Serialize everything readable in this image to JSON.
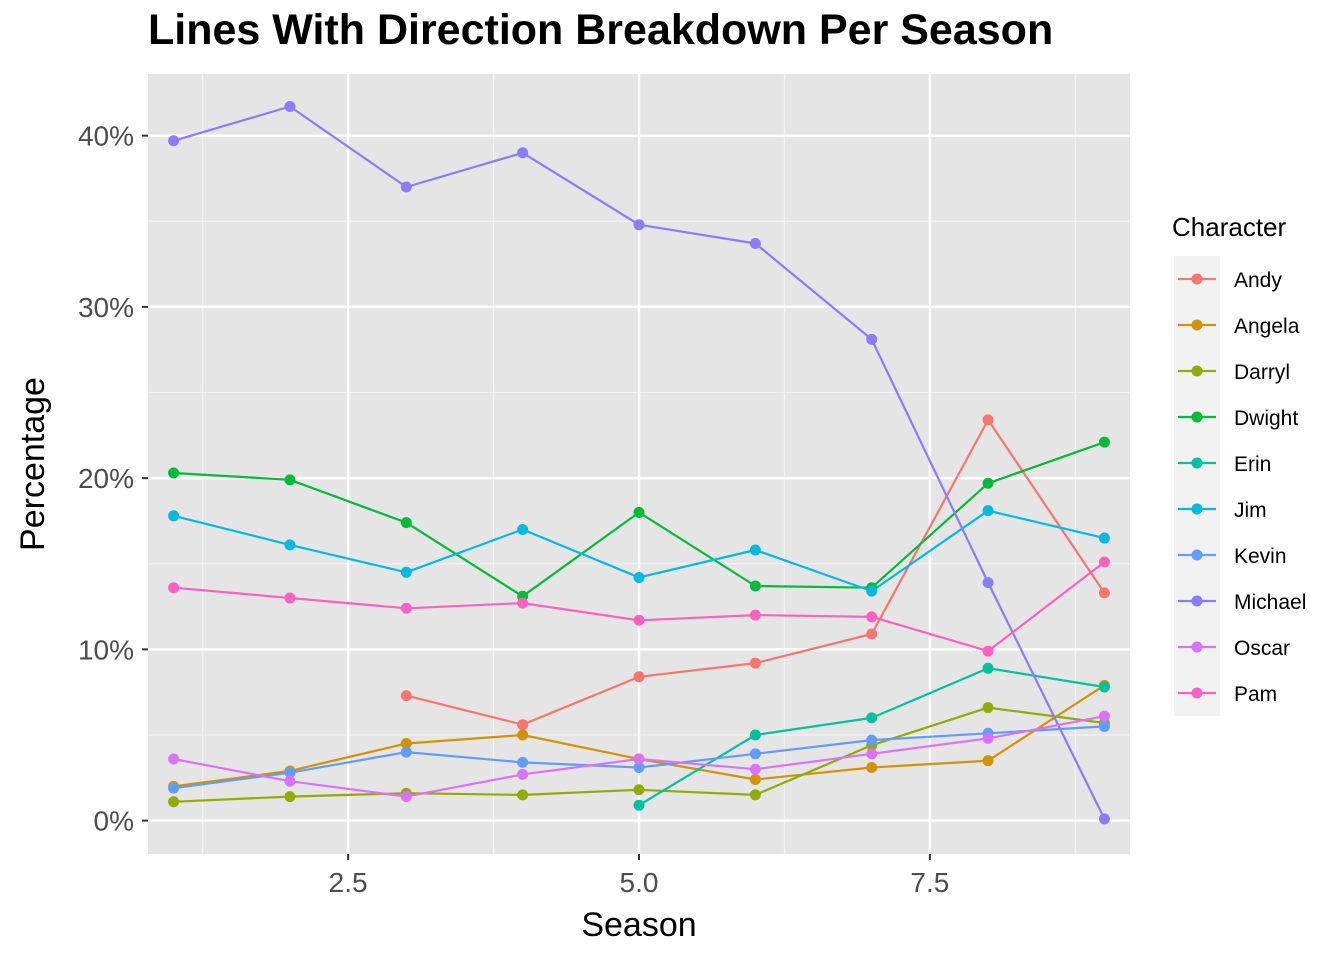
{
  "chart_data": {
    "type": "line",
    "title": "Lines With Direction Breakdown Per Season",
    "xlabel": "Season",
    "ylabel": "Percentage",
    "xlim": [
      0.78,
      9.22
    ],
    "ylim": [
      -1.95,
      43.6
    ],
    "x_ticks": [
      2.5,
      5.0,
      7.5
    ],
    "x_tick_labels": [
      "2.5",
      "5.0",
      "7.5"
    ],
    "y_ticks": [
      0,
      10,
      20,
      30,
      40
    ],
    "y_tick_labels": [
      "0%",
      "10%",
      "20%",
      "30%",
      "40%"
    ],
    "grid": true,
    "legend_title": "Character",
    "legend_position": "right",
    "series": [
      {
        "name": "Andy",
        "color": "#F8766D",
        "x": [
          3,
          4,
          5,
          6,
          7,
          8,
          9
        ],
        "values": [
          7.3,
          5.6,
          8.4,
          9.2,
          10.9,
          23.4,
          13.3
        ]
      },
      {
        "name": "Angela",
        "color": "#D39200",
        "x": [
          1,
          2,
          3,
          4,
          5,
          6,
          7,
          8,
          9
        ],
        "values": [
          2.0,
          2.9,
          4.5,
          5.0,
          3.6,
          2.4,
          3.1,
          3.5,
          7.9
        ]
      },
      {
        "name": "Darryl",
        "color": "#93AA00",
        "x": [
          1,
          2,
          3,
          4,
          5,
          6,
          7,
          8,
          9
        ],
        "values": [
          1.1,
          1.4,
          1.6,
          1.5,
          1.8,
          1.5,
          4.4,
          6.6,
          5.7
        ]
      },
      {
        "name": "Dwight",
        "color": "#00BA38",
        "x": [
          1,
          2,
          3,
          4,
          5,
          6,
          7,
          8,
          9
        ],
        "values": [
          20.3,
          19.9,
          17.4,
          13.1,
          18.0,
          13.7,
          13.6,
          19.7,
          22.1
        ]
      },
      {
        "name": "Erin",
        "color": "#00C19F",
        "x": [
          5,
          6,
          7,
          8,
          9
        ],
        "values": [
          0.9,
          5.0,
          6.0,
          8.9,
          7.8
        ]
      },
      {
        "name": "Jim",
        "color": "#00B9E3",
        "x": [
          1,
          2,
          3,
          4,
          5,
          6,
          7,
          8,
          9
        ],
        "values": [
          17.8,
          16.1,
          14.5,
          17.0,
          14.2,
          15.8,
          13.4,
          18.1,
          16.5
        ]
      },
      {
        "name": "Kevin",
        "color": "#619CFF",
        "x": [
          1,
          2,
          3,
          4,
          5,
          6,
          7,
          8,
          9
        ],
        "values": [
          1.9,
          2.8,
          4.0,
          3.4,
          3.1,
          3.9,
          4.7,
          5.1,
          5.5
        ]
      },
      {
        "name": "Michael",
        "color": "#8A7BFF",
        "x": [
          1,
          2,
          3,
          4,
          5,
          6,
          7,
          8,
          9
        ],
        "values": [
          39.7,
          41.7,
          37.0,
          39.0,
          34.8,
          33.7,
          28.1,
          13.9,
          0.1
        ]
      },
      {
        "name": "Oscar",
        "color": "#DB72FB",
        "x": [
          1,
          2,
          3,
          4,
          5,
          6,
          7,
          8,
          9
        ],
        "values": [
          3.6,
          2.3,
          1.4,
          2.7,
          3.6,
          3.0,
          3.9,
          4.8,
          6.1
        ]
      },
      {
        "name": "Pam",
        "color": "#FF61C3",
        "x": [
          1,
          2,
          3,
          4,
          5,
          6,
          7,
          8,
          9
        ],
        "values": [
          13.6,
          13.0,
          12.4,
          12.7,
          11.7,
          12.0,
          11.9,
          9.9,
          15.1
        ]
      }
    ]
  }
}
